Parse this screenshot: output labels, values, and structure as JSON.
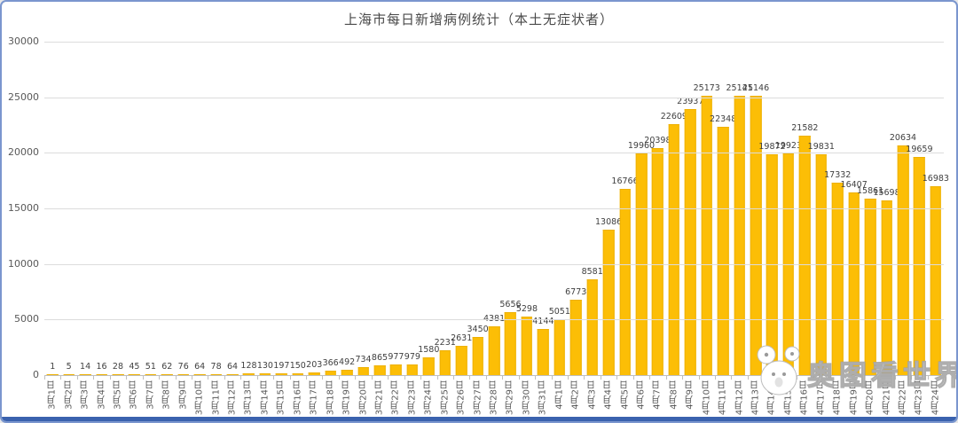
{
  "frame": {
    "border_color": "#7a96ce",
    "bottom_bar_color": "#3a62ae",
    "background": "#ffffff"
  },
  "chart_data": {
    "type": "bar",
    "title": "上海市每日新增病例统计（本土无症状者）",
    "categories": [
      "3月1日",
      "3月2日",
      "3月3日",
      "3月4日",
      "3月5日",
      "3月6日",
      "3月7日",
      "3月8日",
      "3月9日",
      "3月10日",
      "3月11日",
      "3月12日",
      "3月13日",
      "3月14日",
      "3月15日",
      "3月16日",
      "3月17日",
      "3月18日",
      "3月19日",
      "3月20日",
      "3月21日",
      "3月22日",
      "3月23日",
      "3月24日",
      "3月25日",
      "3月26日",
      "3月27日",
      "3月28日",
      "3月29日",
      "3月30日",
      "3月31日",
      "4月1日",
      "4月2日",
      "4月3日",
      "4月4日",
      "4月5日",
      "4月6日",
      "4月7日",
      "4月8日",
      "4月9日",
      "4月10日",
      "4月11日",
      "4月12日",
      "4月13日",
      "4月14日",
      "4月15日",
      "4月16日",
      "4月17日",
      "4月18日",
      "4月19日",
      "4月20日",
      "4月21日",
      "4月22日",
      "4月23日",
      "4月24日"
    ],
    "values": [
      1,
      5,
      14,
      16,
      28,
      45,
      51,
      62,
      76,
      64,
      78,
      64,
      128,
      130,
      197,
      150,
      203,
      366,
      492,
      734,
      865,
      977,
      979,
      1580,
      2231,
      2631,
      3450,
      4381,
      5656,
      5298,
      4144,
      5051,
      6773,
      8581,
      13086,
      16766,
      19960,
      20398,
      22609,
      23937,
      25173,
      22348,
      25141,
      25146,
      19872,
      19923,
      21582,
      19831,
      17332,
      16407,
      15861,
      15698,
      20634,
      19659,
      16983
    ],
    "xlabel": "",
    "ylabel": "",
    "ylim": [
      0,
      30000
    ],
    "yticks": [
      0,
      5000,
      10000,
      15000,
      20000,
      25000,
      30000
    ],
    "grid": true,
    "legend": "none",
    "bar_color": "#fcbe06",
    "data_labels": true
  },
  "watermark": {
    "text": "奥图看世界",
    "mascot": "koala-icon"
  }
}
